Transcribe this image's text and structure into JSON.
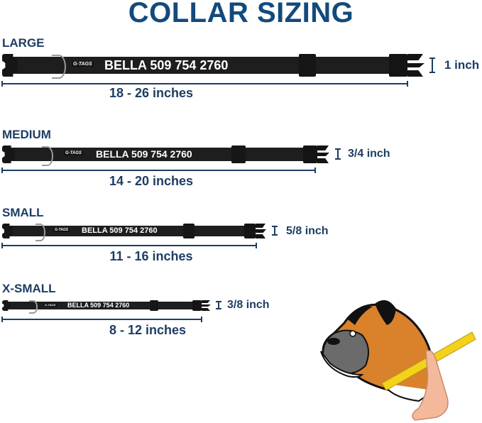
{
  "title": "COLLAR SIZING",
  "sizes": [
    {
      "label": "LARGE",
      "range": "18 - 26 inches",
      "width": "1 inch",
      "logo": "G-TAGS",
      "name_text": "BELLA 509 754 2760"
    },
    {
      "label": "MEDIUM",
      "range": "14 - 20 inches",
      "width": "3/4 inch",
      "logo": "G-TAGS",
      "name_text": "BELLA 509 754 2760"
    },
    {
      "label": "SMALL",
      "range": "11 - 16 inches",
      "width": "5/8 inch",
      "logo": "G-TAGS",
      "name_text": "BELLA 509 754 2760"
    },
    {
      "label": "X-SMALL",
      "range": "8 - 12 inches",
      "width": "3/8 inch",
      "logo": "G-TAGS",
      "name_text": "BELLA 509 754 2760"
    }
  ],
  "colors": {
    "title": "#134a7c",
    "text": "#1d3d63",
    "collar": "#1e1e1e",
    "dog_fur": "#d9822b",
    "tape": "#f2d21b"
  },
  "illustration": "boxer-dog-neck-measurement-icon"
}
